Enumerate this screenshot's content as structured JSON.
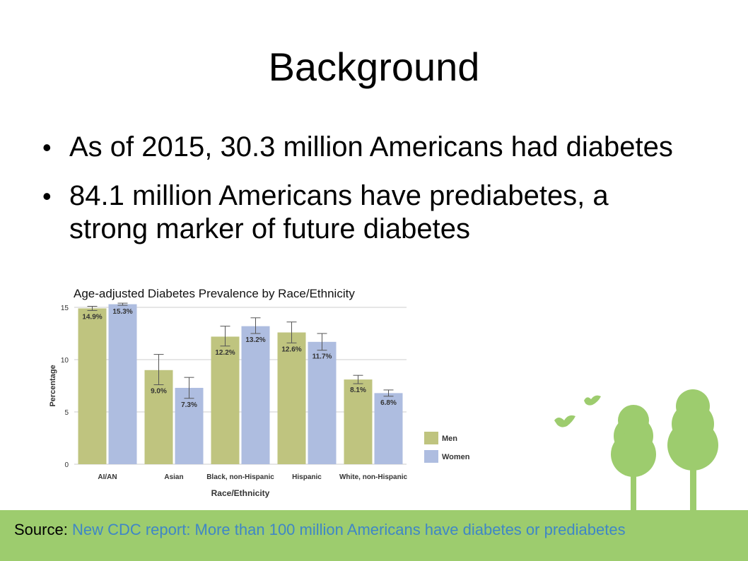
{
  "slide": {
    "title": "Background",
    "bullets": [
      {
        "text": "As of 2015, 30.3 million Americans had diabetes"
      },
      {
        "text": "84.1 million Americans have prediabetes, a strong marker of future diabetes"
      }
    ],
    "bullet_glyph": "•"
  },
  "chart_data": {
    "type": "bar",
    "title": "Age-adjusted Diabetes Prevalence by Race/Ethnicity",
    "xlabel": "Race/Ethnicity",
    "ylabel": "Percentage",
    "categories": [
      "AI/AN",
      "Asian",
      "Black, non-Hispanic",
      "Hispanic",
      "White, non-Hispanic"
    ],
    "series": [
      {
        "name": "Men",
        "color": "#bfc47f",
        "values": [
          14.9,
          9.0,
          12.2,
          12.6,
          8.1
        ],
        "labels": [
          "14.9%",
          "9.0%",
          "12.2%",
          "12.6%",
          "8.1%"
        ],
        "error_low": [
          14.7,
          7.6,
          11.3,
          11.6,
          7.7
        ],
        "error_high": [
          15.1,
          10.5,
          13.2,
          13.6,
          8.5
        ]
      },
      {
        "name": "Women",
        "color": "#aebde0",
        "values": [
          15.3,
          7.3,
          13.2,
          11.7,
          6.8
        ],
        "labels": [
          "15.3%",
          "7.3%",
          "13.2%",
          "11.7%",
          "6.8%"
        ],
        "error_low": [
          15.2,
          6.3,
          12.5,
          10.9,
          6.5
        ],
        "error_high": [
          15.4,
          8.3,
          14.0,
          12.5,
          7.1
        ]
      }
    ],
    "yticks": [
      "0",
      "5",
      "10",
      "15"
    ],
    "ylim": [
      0,
      15
    ],
    "grid": true,
    "legend": "right"
  },
  "footer": {
    "source_label": "Source:",
    "source_link_text": "New CDC report: More than 100 million Americans have diabetes or prediabetes",
    "color": "#9dcc6e"
  }
}
